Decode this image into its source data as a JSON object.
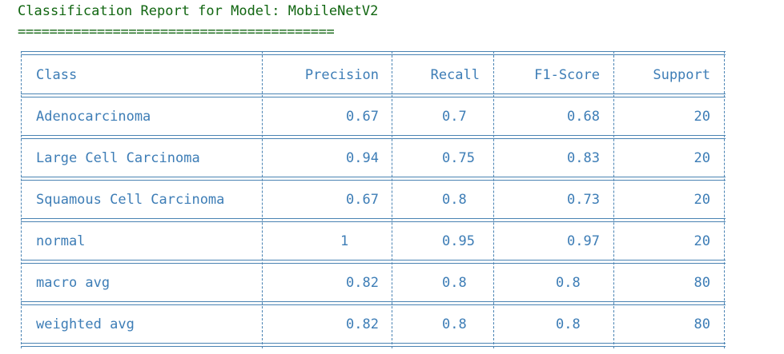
{
  "report": {
    "title": "Classification Report for Model: MobileNetV2",
    "underline": "========================================"
  },
  "table": {
    "headers": [
      "Class",
      "Precision",
      "Recall",
      "F1-Score",
      "Support"
    ],
    "rows": [
      [
        "Adenocarcinoma",
        "0.67",
        "0.7",
        "0.68",
        "20"
      ],
      [
        "Large Cell Carcinoma",
        "0.94",
        "0.75",
        "0.83",
        "20"
      ],
      [
        "Squamous Cell Carcinoma",
        "0.67",
        "0.8",
        "0.73",
        "20"
      ],
      [
        "normal",
        "1",
        "0.95",
        "0.97",
        "20"
      ],
      [
        "macro avg",
        "0.82",
        "0.8",
        "0.8",
        "80"
      ],
      [
        "weighted avg",
        "0.82",
        "0.8",
        "0.8",
        "80"
      ]
    ]
  },
  "colors": {
    "title_text": "#116611",
    "table_text": "#3d7db6",
    "table_border": "#4a83b3"
  }
}
